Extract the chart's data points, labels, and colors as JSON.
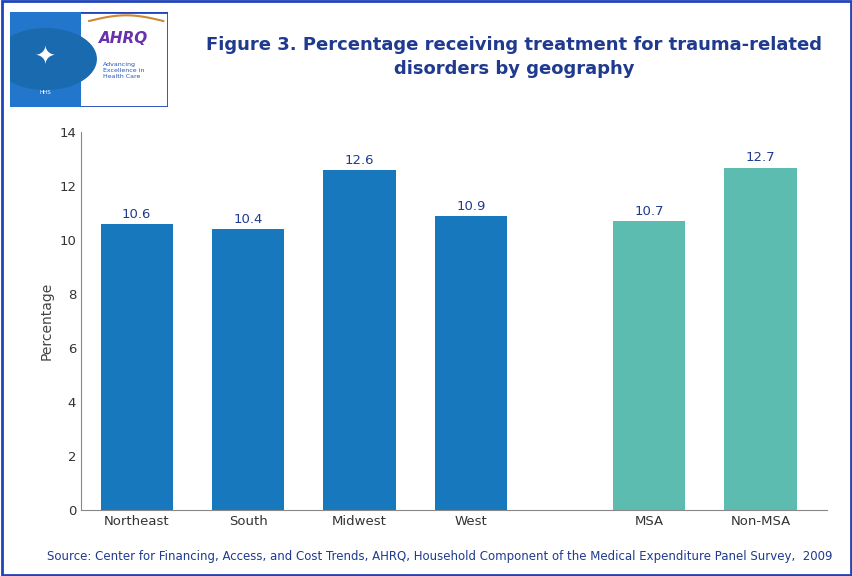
{
  "categories": [
    "Northeast",
    "South",
    "Midwest",
    "West",
    "MSA",
    "Non-MSA"
  ],
  "values": [
    10.6,
    10.4,
    12.6,
    10.9,
    10.7,
    12.7
  ],
  "bar_colors": [
    "#1878be",
    "#1878be",
    "#1878be",
    "#1878be",
    "#5dbcb0",
    "#5dbcb0"
  ],
  "title": "Figure 3. Percentage receiving treatment for trauma-related\ndisorders by geography",
  "title_color": "#1f3a8f",
  "ylabel": "Percentage",
  "ylim": [
    0,
    14
  ],
  "yticks": [
    0,
    2,
    4,
    6,
    8,
    10,
    12,
    14
  ],
  "source_text": "Source: Center for Financing, Access, and Cost Trends, AHRQ, Household Component of the Medical Expenditure Panel Survey,  2009",
  "source_color": "#1f3a8f",
  "background_color": "#ffffff",
  "plot_bg_color": "#ffffff",
  "title_fontsize": 13,
  "label_fontsize": 9.5,
  "tick_fontsize": 9.5,
  "source_fontsize": 8.5,
  "ylabel_fontsize": 10,
  "separator_line_color": "#0000aa",
  "header_bg": "#ffffff",
  "logo_border_color": "#2255cc",
  "logo_hhs_bg": "#2277cc",
  "logo_ahrq_text_color": "#6633aa",
  "logo_subtext_color": "#2255bb",
  "x_positions": [
    0,
    1,
    2,
    3,
    4.6,
    5.6
  ],
  "bar_width": 0.65,
  "xlim": [
    -0.5,
    6.2
  ]
}
